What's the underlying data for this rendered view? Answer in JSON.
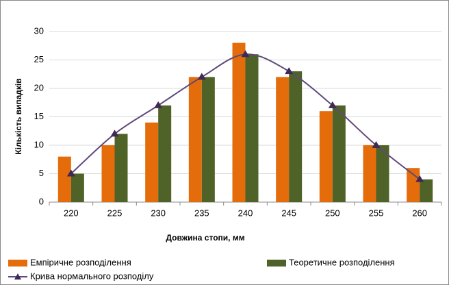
{
  "chart_data": {
    "type": "bar",
    "x_label": "Довжина стопи, мм",
    "y_label": "Кількість випадків",
    "categories": [
      "220",
      "225",
      "230",
      "235",
      "240",
      "245",
      "250",
      "255",
      "260"
    ],
    "series": [
      {
        "name": "Емпіричне розподілення",
        "color": "#e46c0a",
        "values": [
          8,
          10,
          14,
          22,
          28,
          22,
          16,
          10,
          6
        ]
      },
      {
        "name": "Теоретичне розподілення",
        "color": "#4f6228",
        "values": [
          5,
          12,
          17,
          22,
          26,
          23,
          17,
          10,
          4
        ]
      },
      {
        "name": "Крива нормального розподілу",
        "color": "#60497a",
        "type": "line",
        "values": [
          5,
          12,
          17,
          22,
          26,
          23,
          17,
          10,
          4
        ]
      }
    ],
    "ylim": [
      0,
      30
    ],
    "yticks": [
      0,
      5,
      10,
      15,
      20,
      25,
      30
    ],
    "grid": true
  }
}
